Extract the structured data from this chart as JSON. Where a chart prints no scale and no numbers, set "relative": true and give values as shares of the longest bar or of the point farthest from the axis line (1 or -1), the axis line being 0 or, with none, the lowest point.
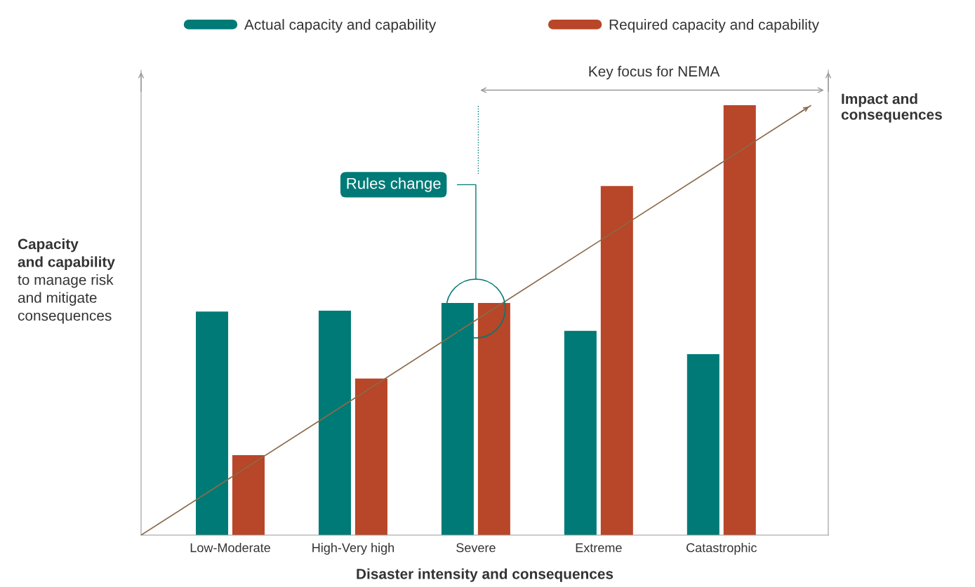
{
  "chart_data": {
    "type": "bar",
    "relative": true,
    "xlabel": "Disaster intensity and consequences",
    "ylabel": "Capacity\nand capability\nto manage risk\nand mitigate\nconsequences",
    "categories": [
      "Low-Moderate",
      "High-Very high",
      "Severe",
      "Extreme",
      "Catastrophic"
    ],
    "series": [
      {
        "name": "Actual capacity and capability",
        "color": "#007a76",
        "values": [
          0.52,
          0.522,
          0.54,
          0.475,
          0.421
        ]
      },
      {
        "name": "Required capacity and capability",
        "color": "#b84628",
        "values": [
          0.186,
          0.364,
          0.54,
          0.812,
          1.0
        ]
      },
      {
        "name": "Impact and\nconsequences",
        "type": "line",
        "color": "#8b6a4a",
        "values": [
          0.133,
          0.316,
          0.5,
          0.683,
          0.866
        ]
      }
    ],
    "annotations": [
      "Key focus for NEMA",
      "Rules change"
    ],
    "legend": "top",
    "grid": false
  }
}
